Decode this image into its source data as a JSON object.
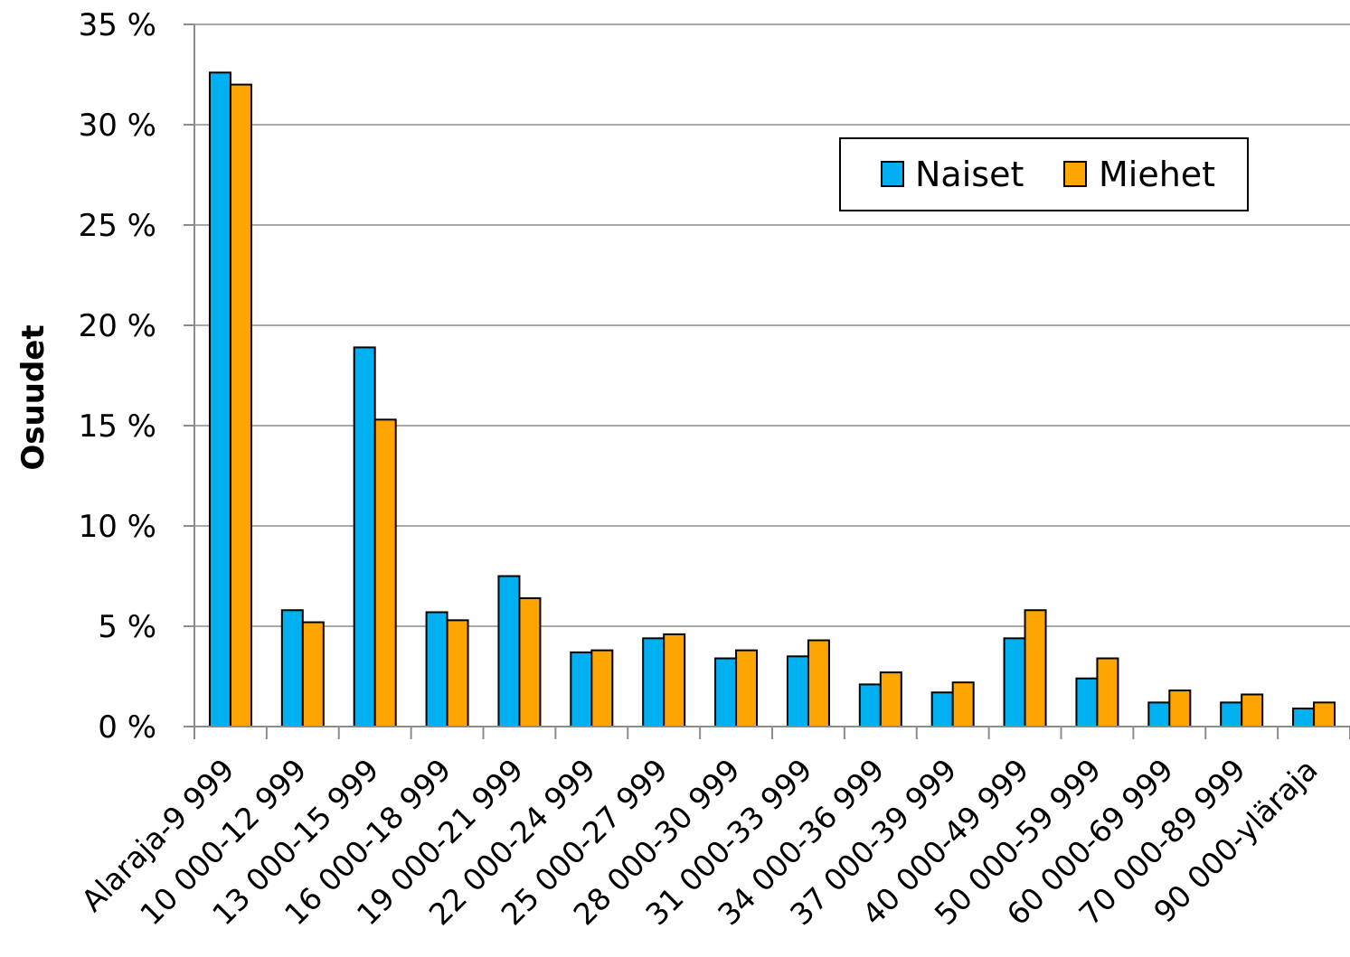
{
  "chart_data": {
    "type": "bar",
    "title": "",
    "xlabel": "",
    "ylabel": "Osuudet",
    "ylim": [
      0,
      35
    ],
    "yticks": [
      0,
      5,
      10,
      15,
      20,
      25,
      30,
      35
    ],
    "ytick_labels": [
      "0 %",
      "5 %",
      "10 %",
      "15 %",
      "20 %",
      "25 %",
      "30 %",
      "35 %"
    ],
    "grid": true,
    "legend_position": "top-right",
    "categories": [
      "Alaraja-9 999",
      "10 000-12 999",
      "13 000-15 999",
      "16 000-18 999",
      "19 000-21 999",
      "22 000-24 999",
      "25 000-27 999",
      "28 000-30 999",
      "31 000-33 999",
      "34 000-36 999",
      "37 000-39 999",
      "40 000-49 999",
      "50 000-59 999",
      "60 000-69 999",
      "70 000-89 999",
      "90 000-yläraja"
    ],
    "series": [
      {
        "name": "Naiset",
        "color": "#00b0f0",
        "values": [
          32.6,
          5.8,
          18.9,
          5.7,
          7.5,
          3.7,
          4.4,
          3.4,
          3.5,
          2.1,
          1.7,
          4.4,
          2.4,
          1.2,
          1.2,
          0.9
        ]
      },
      {
        "name": "Miehet",
        "color": "#ffa500",
        "values": [
          32.0,
          5.2,
          15.3,
          5.3,
          6.4,
          3.8,
          4.6,
          3.8,
          4.3,
          2.7,
          2.2,
          5.8,
          3.4,
          1.8,
          1.6,
          1.2
        ]
      }
    ]
  }
}
